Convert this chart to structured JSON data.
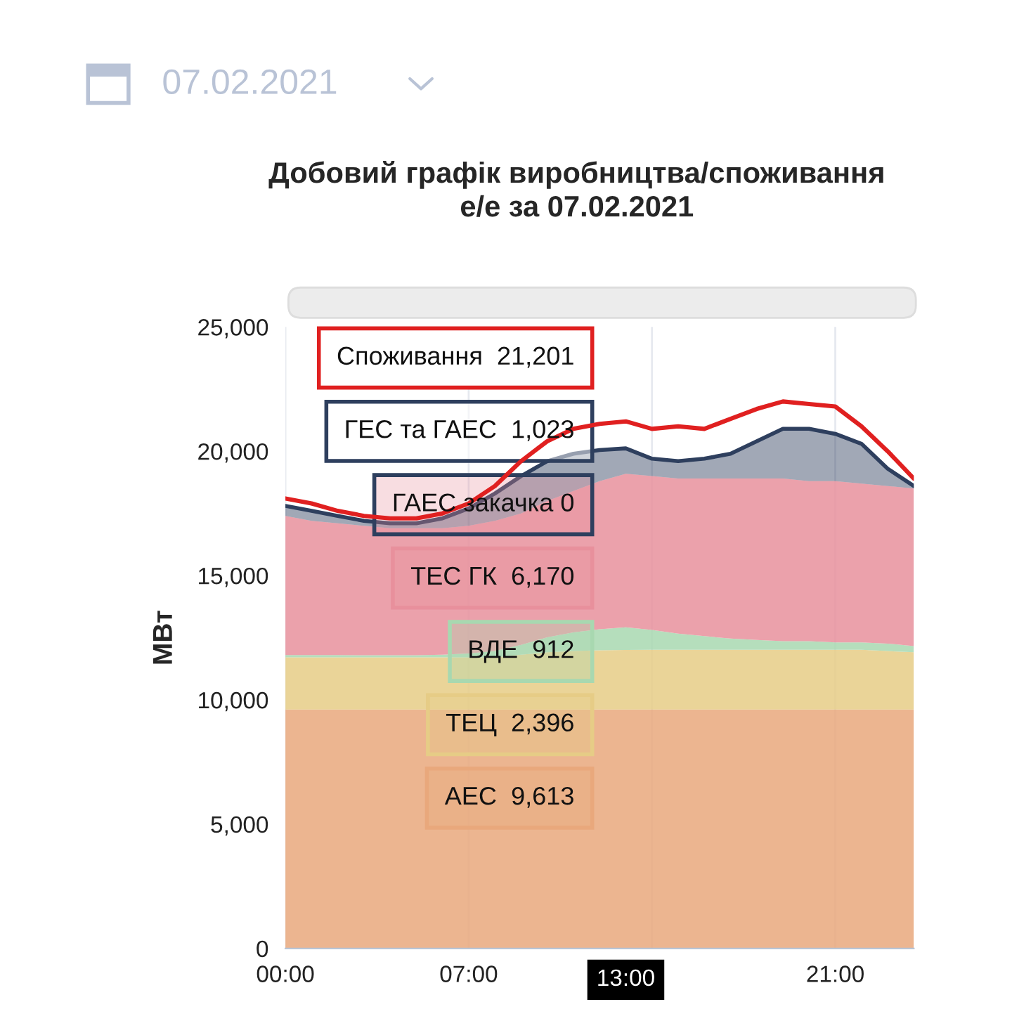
{
  "chart_data": {
    "type": "area",
    "title": "Добовий графік виробництва/споживання\nе/е за 07.02.2021",
    "ylabel": "МВт",
    "stacked": true,
    "grid": "x",
    "x": [
      0,
      1,
      2,
      3,
      4,
      5,
      6,
      7,
      8,
      9,
      10,
      11,
      12,
      13,
      14,
      15,
      16,
      17,
      18,
      19,
      20,
      21,
      22,
      23,
      24
    ],
    "xlim": [
      0,
      24
    ],
    "xticks": [
      {
        "value": 0,
        "label": "00:00"
      },
      {
        "value": 7,
        "label": "07:00"
      },
      {
        "value": 14,
        "label": null
      },
      {
        "value": 21,
        "label": "21:00"
      }
    ],
    "ylim": [
      0,
      25000
    ],
    "yticks": [
      {
        "value": 0,
        "label": "0"
      },
      {
        "value": 5000,
        "label": "5,000"
      },
      {
        "value": 10000,
        "label": "10,000"
      },
      {
        "value": 15000,
        "label": "15,000"
      },
      {
        "value": 20000,
        "label": "20,000"
      },
      {
        "value": 25000,
        "label": "25,000"
      }
    ],
    "series": [
      {
        "name": "АЕС",
        "color": "#e9a87c",
        "values": [
          9613,
          9613,
          9613,
          9613,
          9613,
          9613,
          9613,
          9613,
          9613,
          9613,
          9613,
          9613,
          9613,
          9613,
          9613,
          9613,
          9613,
          9613,
          9613,
          9613,
          9613,
          9613,
          9613,
          9613,
          9613
        ],
        "value_labels": [
          null,
          null,
          null,
          null,
          null,
          null,
          null,
          null,
          null,
          null,
          null,
          null,
          null,
          "9,613",
          null,
          null,
          null,
          null,
          null,
          null,
          null,
          null,
          null,
          null,
          null
        ]
      },
      {
        "name": "ТЕЦ",
        "color": "#e6cc86",
        "values": [
          2100,
          2100,
          2100,
          2100,
          2100,
          2100,
          2100,
          2100,
          2100,
          2200,
          2300,
          2350,
          2380,
          2396,
          2400,
          2400,
          2400,
          2400,
          2400,
          2400,
          2400,
          2400,
          2400,
          2350,
          2300
        ],
        "value_labels": [
          null,
          null,
          null,
          null,
          null,
          null,
          null,
          null,
          null,
          null,
          null,
          null,
          null,
          "2,396",
          null,
          null,
          null,
          null,
          null,
          null,
          null,
          null,
          null,
          null,
          null
        ]
      },
      {
        "name": "ВДЕ",
        "color": "#a8d8b0",
        "values": [
          90,
          90,
          90,
          80,
          80,
          80,
          100,
          150,
          250,
          400,
          600,
          750,
          850,
          912,
          800,
          650,
          550,
          450,
          400,
          350,
          350,
          300,
          300,
          300,
          250
        ],
        "value_labels": [
          null,
          null,
          null,
          null,
          null,
          null,
          null,
          null,
          null,
          null,
          null,
          null,
          null,
          "912",
          null,
          null,
          null,
          null,
          null,
          null,
          null,
          null,
          null,
          null,
          null
        ]
      },
      {
        "name": "ТЕС ГК",
        "color": "#e8909c",
        "values": [
          5597,
          5397,
          5297,
          5207,
          5107,
          5107,
          5087,
          5137,
          5237,
          5287,
          5487,
          5687,
          5957,
          6170,
          6187,
          6237,
          6337,
          6437,
          6487,
          6537,
          6437,
          6487,
          6387,
          6337,
          6337
        ],
        "value_labels": [
          null,
          null,
          null,
          null,
          null,
          null,
          null,
          null,
          null,
          null,
          null,
          null,
          null,
          "6,170",
          null,
          null,
          null,
          null,
          null,
          null,
          null,
          null,
          null,
          null,
          null
        ]
      },
      {
        "name": "ГЕС та ГАЕС",
        "color": "#2e3f5e",
        "values": [
          400,
          400,
          300,
          200,
          200,
          200,
          400,
          700,
          1100,
          1500,
          1600,
          1500,
          1250,
          1023,
          700,
          700,
          800,
          1000,
          1500,
          2000,
          2100,
          1900,
          1600,
          700,
          100
        ],
        "value_labels": [
          null,
          null,
          null,
          null,
          null,
          null,
          null,
          null,
          null,
          null,
          null,
          null,
          null,
          "1,023",
          null,
          null,
          null,
          null,
          null,
          null,
          null,
          null,
          null,
          null,
          null
        ]
      },
      {
        "name": "Споживання",
        "type": "line",
        "color": "#e02020",
        "values": [
          18100,
          17900,
          17600,
          17400,
          17300,
          17300,
          17500,
          17900,
          18600,
          19600,
          20400,
          20900,
          21100,
          21201,
          20900,
          21000,
          20900,
          21300,
          21700,
          22000,
          21900,
          21800,
          21000,
          20000,
          18900
        ],
        "value_labels": [
          null,
          null,
          null,
          null,
          null,
          null,
          null,
          null,
          null,
          null,
          null,
          null,
          null,
          "21,201",
          null,
          null,
          null,
          null,
          null,
          null,
          null,
          null,
          null,
          null,
          null
        ]
      }
    ],
    "annotations": [
      "07.02.2021",
      "ГАЕС закачка 0",
      "13:00"
    ]
  }
}
